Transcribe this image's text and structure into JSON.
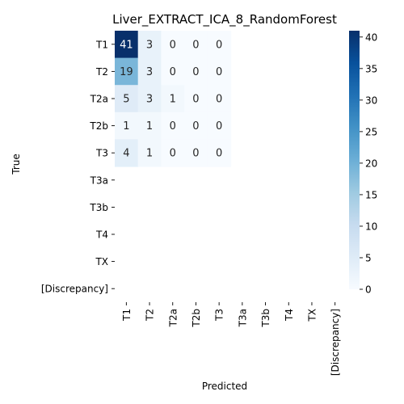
{
  "chart_data": {
    "type": "heatmap",
    "title": "Liver_EXTRACT_ICA_8_RandomForest",
    "xlabel": "Predicted",
    "ylabel": "True",
    "x_categories": [
      "T1",
      "T2",
      "T2a",
      "T2b",
      "T3",
      "T3a",
      "T3b",
      "T4",
      "TX",
      "[Discrepancy]"
    ],
    "y_categories": [
      "T1",
      "T2",
      "T2a",
      "T2b",
      "T3",
      "T3a",
      "T3b",
      "T4",
      "TX",
      "[Discrepancy]"
    ],
    "matrix": [
      [
        41,
        3,
        0,
        0,
        0,
        null,
        null,
        null,
        null,
        null
      ],
      [
        19,
        3,
        0,
        0,
        0,
        null,
        null,
        null,
        null,
        null
      ],
      [
        5,
        3,
        1,
        0,
        0,
        null,
        null,
        null,
        null,
        null
      ],
      [
        1,
        1,
        0,
        0,
        0,
        null,
        null,
        null,
        null,
        null
      ],
      [
        4,
        1,
        0,
        0,
        0,
        null,
        null,
        null,
        null,
        null
      ],
      [
        null,
        null,
        null,
        null,
        null,
        null,
        null,
        null,
        null,
        null
      ],
      [
        null,
        null,
        null,
        null,
        null,
        null,
        null,
        null,
        null,
        null
      ],
      [
        null,
        null,
        null,
        null,
        null,
        null,
        null,
        null,
        null,
        null
      ],
      [
        null,
        null,
        null,
        null,
        null,
        null,
        null,
        null,
        null,
        null
      ],
      [
        null,
        null,
        null,
        null,
        null,
        null,
        null,
        null,
        null,
        null
      ]
    ],
    "colormap": "Blues",
    "colorbar": {
      "min": 0,
      "max": 41,
      "ticks": [
        "0",
        "5",
        "10",
        "15",
        "20",
        "25",
        "30",
        "35",
        "40"
      ]
    }
  }
}
